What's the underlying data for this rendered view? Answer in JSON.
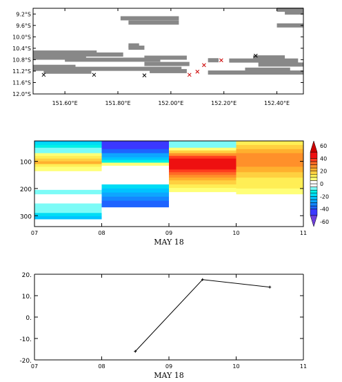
{
  "chart_data": [
    {
      "type": "map",
      "xlim": [
        151.48,
        152.5
      ],
      "ylim": [
        12.0,
        9.0
      ],
      "x_ticks": [
        151.6,
        151.8,
        152.0,
        152.2,
        152.4
      ],
      "x_tick_labels": [
        "151.60°E",
        "151.80°E",
        "152.00°E",
        "152.20°E",
        "152.40°E"
      ],
      "y_ticks": [
        9.2,
        9.6,
        10.0,
        10.4,
        10.8,
        11.2,
        11.6,
        12.0
      ],
      "y_tick_labels": [
        "9.2°S",
        "9.6°S",
        "10.0°S",
        "10.4°S",
        "10.8°S",
        "11.2°S",
        "11.6°S",
        "12.0°S"
      ],
      "land_color": "#888888",
      "land_segments": [
        {
          "lat": 9.05,
          "lon0": 152.4,
          "lon1": 152.5
        },
        {
          "lat": 9.15,
          "lon0": 152.43,
          "lon1": 152.5
        },
        {
          "lat": 9.35,
          "lon0": 151.81,
          "lon1": 152.03
        },
        {
          "lat": 9.5,
          "lon0": 151.84,
          "lon1": 152.03
        },
        {
          "lat": 9.6,
          "lon0": 152.4,
          "lon1": 152.5
        },
        {
          "lat": 10.3,
          "lon0": 151.84,
          "lon1": 151.88
        },
        {
          "lat": 10.38,
          "lon0": 151.84,
          "lon1": 151.9
        },
        {
          "lat": 10.55,
          "lon0": 151.48,
          "lon1": 151.72
        },
        {
          "lat": 10.62,
          "lon0": 151.48,
          "lon1": 151.82
        },
        {
          "lat": 10.73,
          "lon0": 151.48,
          "lon1": 151.68
        },
        {
          "lat": 10.73,
          "lon0": 151.9,
          "lon1": 152.06
        },
        {
          "lat": 10.8,
          "lon0": 151.6,
          "lon1": 151.96
        },
        {
          "lat": 10.82,
          "lon0": 152.14,
          "lon1": 152.18
        },
        {
          "lat": 10.72,
          "lon0": 152.31,
          "lon1": 152.43
        },
        {
          "lat": 10.83,
          "lon0": 152.22,
          "lon1": 152.48
        },
        {
          "lat": 10.95,
          "lon0": 151.9,
          "lon1": 152.07
        },
        {
          "lat": 10.97,
          "lon0": 152.33,
          "lon1": 152.5
        },
        {
          "lat": 11.05,
          "lon0": 151.48,
          "lon1": 151.64
        },
        {
          "lat": 11.12,
          "lon0": 151.48,
          "lon1": 152.04
        },
        {
          "lat": 11.15,
          "lon0": 152.28,
          "lon1": 152.45
        },
        {
          "lat": 11.22,
          "lon0": 151.52,
          "lon1": 151.7
        },
        {
          "lat": 11.2,
          "lon0": 151.92,
          "lon1": 152.06
        },
        {
          "lat": 11.25,
          "lon0": 152.14,
          "lon1": 152.5
        }
      ],
      "markers": [
        {
          "lon": 151.52,
          "lat": 11.33,
          "color": "#000000"
        },
        {
          "lon": 151.71,
          "lat": 11.33,
          "color": "#000000"
        },
        {
          "lon": 151.9,
          "lat": 11.35,
          "color": "#000000"
        },
        {
          "lon": 152.07,
          "lat": 11.33,
          "color": "#cc0000"
        },
        {
          "lon": 152.1,
          "lat": 11.22,
          "color": "#cc0000"
        },
        {
          "lon": 152.125,
          "lat": 10.99,
          "color": "#cc0000"
        },
        {
          "lon": 152.19,
          "lat": 10.82,
          "color": "#cc0000"
        },
        {
          "lon": 152.32,
          "lat": 10.66,
          "color": "#000000"
        }
      ]
    },
    {
      "type": "heatmap",
      "xlim": [
        7,
        11
      ],
      "ylim": [
        340,
        25
      ],
      "x_ticks": [
        7,
        8,
        9,
        10,
        11
      ],
      "x_tick_labels": [
        "07",
        "08",
        "09",
        "10",
        "11"
      ],
      "xlabel": "MAY 18",
      "y_ticks": [
        100,
        200,
        300
      ],
      "y_tick_labels": [
        "100",
        "200",
        "300"
      ],
      "colorbar": {
        "vmin": -60,
        "vmax": 60,
        "ticks": [
          60,
          40,
          20,
          0,
          -20,
          -40,
          -60
        ],
        "tick_labels": [
          "60",
          "40",
          "20",
          "0",
          "-20",
          "-40",
          "-60"
        ],
        "levels": [
          -60,
          -50,
          -40,
          -35,
          -30,
          -25,
          -20,
          -15,
          -10,
          -5,
          0,
          5,
          10,
          15,
          20,
          25,
          30,
          35,
          40,
          50,
          60
        ],
        "colors": [
          "#6f3fdc",
          "#3b38ff",
          "#1e64ff",
          "#1486ff",
          "#0ea5ff",
          "#00c3ff",
          "#00dcf5",
          "#00f0e6",
          "#7cfbf7",
          "#ffffff",
          "#ffffff",
          "#ffff78",
          "#ffee55",
          "#ffd040",
          "#ffb02e",
          "#ff902a",
          "#ff6a26",
          "#ff3c1e",
          "#ee1010",
          "#cc0000"
        ]
      },
      "columns": [
        {
          "x0": 7,
          "x1": 8,
          "cells": [
            {
              "d0": 25,
              "d1": 30,
              "v": -22
            },
            {
              "d0": 30,
              "d1": 40,
              "v": -18
            },
            {
              "d0": 40,
              "d1": 50,
              "v": -14
            },
            {
              "d0": 50,
              "d1": 60,
              "v": -10
            },
            {
              "d0": 60,
              "d1": 70,
              "v": -6
            },
            {
              "d0": 70,
              "d1": 80,
              "v": 7
            },
            {
              "d0": 80,
              "d1": 90,
              "v": 12
            },
            {
              "d0": 90,
              "d1": 100,
              "v": 17
            },
            {
              "d0": 100,
              "d1": 110,
              "v": 20
            },
            {
              "d0": 110,
              "d1": 120,
              "v": 13
            },
            {
              "d0": 120,
              "d1": 135,
              "v": 8
            },
            {
              "d0": 205,
              "d1": 220,
              "v": -8
            },
            {
              "d0": 255,
              "d1": 290,
              "v": -8
            },
            {
              "d0": 290,
              "d1": 302,
              "v": -18
            },
            {
              "d0": 302,
              "d1": 312,
              "v": -22
            }
          ]
        },
        {
          "x0": 8,
          "x1": 9,
          "cells": [
            {
              "d0": 25,
              "d1": 40,
              "v": -45
            },
            {
              "d0": 40,
              "d1": 55,
              "v": -42
            },
            {
              "d0": 55,
              "d1": 70,
              "v": -36
            },
            {
              "d0": 70,
              "d1": 85,
              "v": -30
            },
            {
              "d0": 85,
              "d1": 95,
              "v": -22
            },
            {
              "d0": 95,
              "d1": 105,
              "v": -12
            },
            {
              "d0": 105,
              "d1": 115,
              "v": 8
            },
            {
              "d0": 185,
              "d1": 200,
              "v": -18
            },
            {
              "d0": 200,
              "d1": 215,
              "v": -22
            },
            {
              "d0": 215,
              "d1": 230,
              "v": -28
            },
            {
              "d0": 230,
              "d1": 245,
              "v": -32
            },
            {
              "d0": 245,
              "d1": 268,
              "v": -37
            }
          ]
        },
        {
          "x0": 9,
          "x1": 10,
          "cells": [
            {
              "d0": 25,
              "d1": 40,
              "v": -8
            },
            {
              "d0": 40,
              "d1": 50,
              "v": -6
            },
            {
              "d0": 50,
              "d1": 60,
              "v": 8
            },
            {
              "d0": 60,
              "d1": 70,
              "v": 16
            },
            {
              "d0": 70,
              "d1": 80,
              "v": 28
            },
            {
              "d0": 80,
              "d1": 90,
              "v": 37
            },
            {
              "d0": 90,
              "d1": 130,
              "v": 48
            },
            {
              "d0": 130,
              "d1": 140,
              "v": 37
            },
            {
              "d0": 140,
              "d1": 150,
              "v": 32
            },
            {
              "d0": 150,
              "d1": 160,
              "v": 27
            },
            {
              "d0": 160,
              "d1": 170,
              "v": 22
            },
            {
              "d0": 170,
              "d1": 185,
              "v": 17
            },
            {
              "d0": 185,
              "d1": 198,
              "v": 12
            },
            {
              "d0": 198,
              "d1": 212,
              "v": 7
            }
          ]
        },
        {
          "x0": 10,
          "x1": 11,
          "cells": [
            {
              "d0": 25,
              "d1": 40,
              "v": 13
            },
            {
              "d0": 40,
              "d1": 55,
              "v": 18
            },
            {
              "d0": 55,
              "d1": 70,
              "v": 22
            },
            {
              "d0": 70,
              "d1": 85,
              "v": 26
            },
            {
              "d0": 85,
              "d1": 100,
              "v": 28
            },
            {
              "d0": 100,
              "d1": 120,
              "v": 27
            },
            {
              "d0": 120,
              "d1": 140,
              "v": 23
            },
            {
              "d0": 140,
              "d1": 160,
              "v": 18
            },
            {
              "d0": 160,
              "d1": 180,
              "v": 14
            },
            {
              "d0": 180,
              "d1": 200,
              "v": 11
            },
            {
              "d0": 200,
              "d1": 220,
              "v": 7
            }
          ]
        }
      ]
    },
    {
      "type": "line",
      "xlim": [
        7,
        11
      ],
      "ylim": [
        -20,
        20
      ],
      "x_ticks": [
        7,
        8,
        9,
        10,
        11
      ],
      "x_tick_labels": [
        "07",
        "08",
        "09",
        "10",
        "11"
      ],
      "xlabel": "MAY 18",
      "y_ticks": [
        20,
        10,
        0,
        -10,
        -20
      ],
      "y_tick_labels": [
        "20.",
        "10.",
        "0.",
        "-10.",
        "-20."
      ],
      "x": [
        8.5,
        9.5,
        10.5
      ],
      "y": [
        -16,
        17.5,
        14
      ]
    }
  ]
}
